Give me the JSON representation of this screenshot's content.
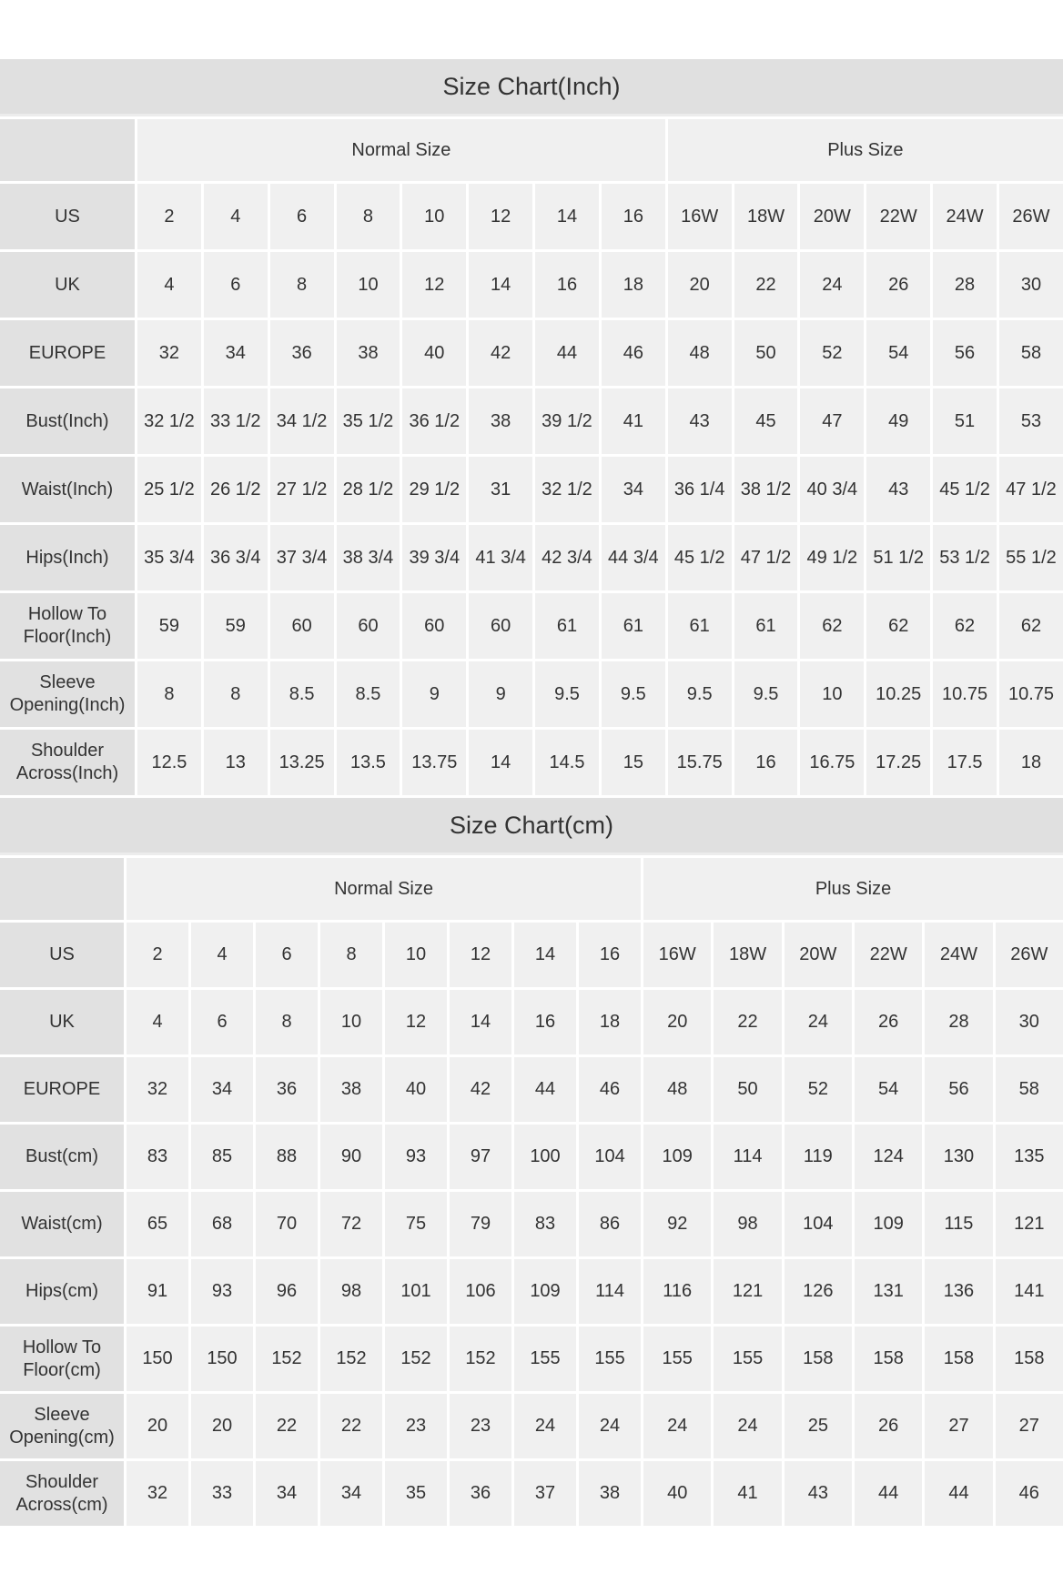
{
  "inch_chart": {
    "title": "Size Chart(Inch)",
    "groups": {
      "normal": "Normal Size",
      "plus": "Plus Size"
    },
    "rows": [
      {
        "label": "US",
        "values": [
          "2",
          "4",
          "6",
          "8",
          "10",
          "12",
          "14",
          "16",
          "16W",
          "18W",
          "20W",
          "22W",
          "24W",
          "26W"
        ]
      },
      {
        "label": "UK",
        "values": [
          "4",
          "6",
          "8",
          "10",
          "12",
          "14",
          "16",
          "18",
          "20",
          "22",
          "24",
          "26",
          "28",
          "30"
        ]
      },
      {
        "label": "EUROPE",
        "values": [
          "32",
          "34",
          "36",
          "38",
          "40",
          "42",
          "44",
          "46",
          "48",
          "50",
          "52",
          "54",
          "56",
          "58"
        ]
      },
      {
        "label": "Bust(Inch)",
        "values": [
          "32 1/2",
          "33 1/2",
          "34 1/2",
          "35 1/2",
          "36 1/2",
          "38",
          "39 1/2",
          "41",
          "43",
          "45",
          "47",
          "49",
          "51",
          "53"
        ]
      },
      {
        "label": "Waist(Inch)",
        "values": [
          "25 1/2",
          "26 1/2",
          "27 1/2",
          "28 1/2",
          "29 1/2",
          "31",
          "32 1/2",
          "34",
          "36 1/4",
          "38 1/2",
          "40 3/4",
          "43",
          "45 1/2",
          "47 1/2"
        ]
      },
      {
        "label": "Hips(Inch)",
        "values": [
          "35 3/4",
          "36 3/4",
          "37 3/4",
          "38 3/4",
          "39 3/4",
          "41 3/4",
          "42 3/4",
          "44 3/4",
          "45 1/2",
          "47 1/2",
          "49 1/2",
          "51 1/2",
          "53 1/2",
          "55 1/2"
        ]
      },
      {
        "label": "Hollow To Floor(Inch)",
        "values": [
          "59",
          "59",
          "60",
          "60",
          "60",
          "60",
          "61",
          "61",
          "61",
          "61",
          "62",
          "62",
          "62",
          "62"
        ]
      },
      {
        "label": "Sleeve Opening(Inch)",
        "values": [
          "8",
          "8",
          "8.5",
          "8.5",
          "9",
          "9",
          "9.5",
          "9.5",
          "9.5",
          "9.5",
          "10",
          "10.25",
          "10.75",
          "10.75"
        ]
      },
      {
        "label": "Shoulder Across(Inch)",
        "values": [
          "12.5",
          "13",
          "13.25",
          "13.5",
          "13.75",
          "14",
          "14.5",
          "15",
          "15.75",
          "16",
          "16.75",
          "17.25",
          "17.5",
          "18"
        ]
      }
    ]
  },
  "cm_chart": {
    "title": "Size Chart(cm)",
    "groups": {
      "normal": "Normal Size",
      "plus": "Plus Size"
    },
    "rows": [
      {
        "label": "US",
        "values": [
          "2",
          "4",
          "6",
          "8",
          "10",
          "12",
          "14",
          "16",
          "16W",
          "18W",
          "20W",
          "22W",
          "24W",
          "26W"
        ]
      },
      {
        "label": "UK",
        "values": [
          "4",
          "6",
          "8",
          "10",
          "12",
          "14",
          "16",
          "18",
          "20",
          "22",
          "24",
          "26",
          "28",
          "30"
        ]
      },
      {
        "label": "EUROPE",
        "values": [
          "32",
          "34",
          "36",
          "38",
          "40",
          "42",
          "44",
          "46",
          "48",
          "50",
          "52",
          "54",
          "56",
          "58"
        ]
      },
      {
        "label": "Bust(cm)",
        "values": [
          "83",
          "85",
          "88",
          "90",
          "93",
          "97",
          "100",
          "104",
          "109",
          "114",
          "119",
          "124",
          "130",
          "135"
        ]
      },
      {
        "label": "Waist(cm)",
        "values": [
          "65",
          "68",
          "70",
          "72",
          "75",
          "79",
          "83",
          "86",
          "92",
          "98",
          "104",
          "109",
          "115",
          "121"
        ]
      },
      {
        "label": "Hips(cm)",
        "values": [
          "91",
          "93",
          "96",
          "98",
          "101",
          "106",
          "109",
          "114",
          "116",
          "121",
          "126",
          "131",
          "136",
          "141"
        ]
      },
      {
        "label": "Hollow To Floor(cm)",
        "values": [
          "150",
          "150",
          "152",
          "152",
          "152",
          "152",
          "155",
          "155",
          "155",
          "155",
          "158",
          "158",
          "158",
          "158"
        ]
      },
      {
        "label": "Sleeve Opening(cm)",
        "values": [
          "20",
          "20",
          "22",
          "22",
          "23",
          "23",
          "24",
          "24",
          "24",
          "24",
          "25",
          "26",
          "27",
          "27"
        ]
      },
      {
        "label": "Shoulder Across(cm)",
        "values": [
          "32",
          "33",
          "34",
          "34",
          "35",
          "36",
          "37",
          "38",
          "40",
          "41",
          "43",
          "44",
          "44",
          "46"
        ]
      }
    ]
  },
  "colors": {
    "title_bg": "#e0e0e0",
    "label_bg": "#e1e1e1",
    "cell_bg": "#f0f0f0",
    "text": "#333333"
  }
}
